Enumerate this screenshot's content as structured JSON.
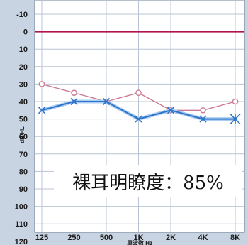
{
  "chart_data": {
    "type": "line",
    "title": "",
    "xlabel": "周波数 Hz",
    "ylabel": "dB HL",
    "categories": [
      "125",
      "250",
      "500",
      "1K",
      "2K",
      "4K",
      "8K"
    ],
    "y_ticks": [
      "-10",
      "0",
      "10",
      "20",
      "30",
      "40",
      "50",
      "60",
      "70",
      "80",
      "90",
      "100",
      "110",
      "120"
    ],
    "ylim": [
      -10,
      120
    ],
    "y_inverted": true,
    "grid": true,
    "reference_line": {
      "value": 0,
      "color": "#b0144f"
    },
    "series": [
      {
        "color": "#cc7a93",
        "marker": "circle",
        "values": [
          30,
          35,
          40,
          35,
          45,
          45,
          40
        ]
      },
      {
        "color": "#2f74c8",
        "marker": "x",
        "values": [
          45,
          40,
          40,
          50,
          45,
          50,
          50
        ]
      }
    ]
  },
  "annotation": {
    "label": "裸耳明瞭度：85%"
  },
  "colors": {
    "frame_background": "#c9d4e2",
    "plot_background": "#ffffff",
    "grid": "#b8c4d4"
  }
}
